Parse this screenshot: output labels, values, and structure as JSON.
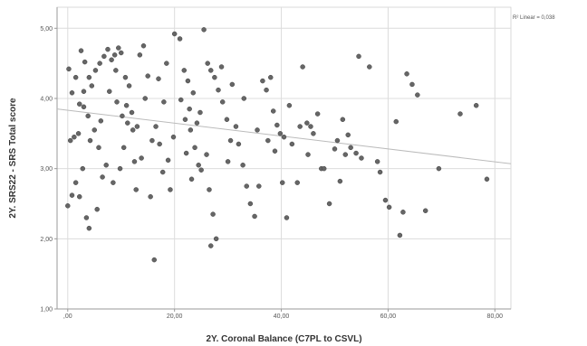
{
  "chart_data": {
    "type": "scatter",
    "xlabel": "2Y. Coronal Balance (C7PL to CSVL)",
    "ylabel": "2Y. SRS22 - SRS Total score",
    "xlim": [
      -2,
      83
    ],
    "ylim": [
      1.0,
      5.3
    ],
    "xticks": [
      0,
      20,
      40,
      60,
      80
    ],
    "xtick_labels": [
      ",00",
      "20,00",
      "40,00",
      "60,00",
      "80,00"
    ],
    "yticks": [
      1.0,
      2.0,
      3.0,
      4.0,
      5.0
    ],
    "ytick_labels": [
      "1,00",
      "2,00",
      "3,00",
      "4,00",
      "5,00"
    ],
    "grid": true,
    "annotation": "R² Linear = 0,038",
    "fit_line": {
      "x": [
        -2,
        83
      ],
      "y": [
        3.85,
        3.07
      ]
    },
    "colors": {
      "point": "#666666",
      "point_edge": "#444444",
      "grid": "#dcdcdc",
      "fit": "#bbbbbb",
      "frame": "#d0d0d0"
    },
    "points": [
      [
        0.2,
        4.42
      ],
      [
        0.8,
        4.08
      ],
      [
        1.5,
        4.3
      ],
      [
        2.2,
        3.92
      ],
      [
        3.0,
        4.1
      ],
      [
        0.5,
        3.4
      ],
      [
        1.2,
        3.45
      ],
      [
        2.0,
        3.5
      ],
      [
        0.8,
        2.62
      ],
      [
        1.5,
        2.8
      ],
      [
        2.2,
        2.6
      ],
      [
        0.0,
        2.47
      ],
      [
        2.5,
        4.68
      ],
      [
        3.2,
        4.52
      ],
      [
        4.0,
        4.3
      ],
      [
        3.0,
        3.88
      ],
      [
        3.8,
        3.75
      ],
      [
        4.5,
        4.18
      ],
      [
        5.2,
        4.4
      ],
      [
        6.0,
        4.5
      ],
      [
        6.8,
        4.6
      ],
      [
        7.5,
        4.7
      ],
      [
        8.2,
        4.55
      ],
      [
        4.2,
        3.4
      ],
      [
        5.0,
        3.55
      ],
      [
        5.8,
        3.3
      ],
      [
        3.5,
        2.3
      ],
      [
        4.0,
        2.15
      ],
      [
        5.5,
        2.42
      ],
      [
        6.5,
        2.88
      ],
      [
        7.2,
        3.05
      ],
      [
        8.5,
        2.8
      ],
      [
        9.0,
        4.4
      ],
      [
        8.8,
        4.62
      ],
      [
        9.5,
        4.72
      ],
      [
        10.0,
        4.65
      ],
      [
        9.2,
        3.95
      ],
      [
        10.2,
        3.75
      ],
      [
        11.0,
        3.9
      ],
      [
        12.0,
        3.8
      ],
      [
        11.2,
        3.65
      ],
      [
        11.5,
        4.18
      ],
      [
        10.5,
        3.3
      ],
      [
        9.8,
        3.0
      ],
      [
        12.5,
        3.1
      ],
      [
        12.8,
        2.7
      ],
      [
        12.2,
        3.55
      ],
      [
        13.5,
        4.62
      ],
      [
        14.2,
        4.75
      ],
      [
        15.0,
        4.32
      ],
      [
        14.5,
        4.0
      ],
      [
        13.0,
        3.6
      ],
      [
        15.8,
        3.4
      ],
      [
        16.5,
        3.6
      ],
      [
        17.2,
        3.35
      ],
      [
        18.0,
        3.95
      ],
      [
        17.0,
        4.28
      ],
      [
        18.5,
        4.5
      ],
      [
        16.2,
        1.7
      ],
      [
        18.8,
        3.12
      ],
      [
        19.2,
        2.7
      ],
      [
        20.0,
        4.92
      ],
      [
        21.0,
        4.85
      ],
      [
        21.8,
        4.4
      ],
      [
        22.5,
        4.25
      ],
      [
        21.2,
        3.98
      ],
      [
        22.0,
        3.7
      ],
      [
        22.8,
        3.85
      ],
      [
        23.5,
        4.08
      ],
      [
        23.0,
        3.55
      ],
      [
        24.2,
        3.65
      ],
      [
        24.8,
        3.8
      ],
      [
        23.8,
        3.3
      ],
      [
        24.5,
        3.05
      ],
      [
        25.0,
        2.98
      ],
      [
        23.2,
        2.85
      ],
      [
        22.2,
        3.22
      ],
      [
        25.5,
        4.98
      ],
      [
        26.2,
        4.5
      ],
      [
        26.8,
        4.4
      ],
      [
        27.5,
        4.3
      ],
      [
        26.0,
        3.2
      ],
      [
        26.5,
        2.7
      ],
      [
        27.2,
        2.35
      ],
      [
        27.8,
        2.0
      ],
      [
        26.8,
        1.9
      ],
      [
        28.2,
        4.12
      ],
      [
        29.0,
        3.95
      ],
      [
        29.8,
        3.7
      ],
      [
        30.5,
        3.4
      ],
      [
        30.0,
        3.1
      ],
      [
        31.5,
        3.6
      ],
      [
        32.0,
        3.35
      ],
      [
        32.8,
        3.05
      ],
      [
        33.5,
        2.75
      ],
      [
        34.2,
        2.5
      ],
      [
        35.0,
        2.32
      ],
      [
        35.8,
        2.75
      ],
      [
        36.5,
        4.25
      ],
      [
        37.2,
        4.12
      ],
      [
        38.0,
        4.3
      ],
      [
        38.5,
        3.82
      ],
      [
        39.2,
        3.62
      ],
      [
        39.8,
        3.5
      ],
      [
        38.8,
        3.25
      ],
      [
        40.5,
        3.45
      ],
      [
        40.2,
        2.8
      ],
      [
        41.0,
        2.3
      ],
      [
        42.0,
        3.35
      ],
      [
        43.0,
        2.8
      ],
      [
        44.0,
        4.45
      ],
      [
        44.8,
        3.65
      ],
      [
        45.5,
        3.6
      ],
      [
        46.0,
        3.5
      ],
      [
        46.8,
        3.78
      ],
      [
        47.5,
        3.0
      ],
      [
        48.0,
        3.0
      ],
      [
        49.0,
        2.5
      ],
      [
        50.0,
        3.28
      ],
      [
        51.0,
        2.82
      ],
      [
        52.0,
        3.2
      ],
      [
        53.0,
        3.3
      ],
      [
        54.0,
        3.22
      ],
      [
        55.0,
        3.15
      ],
      [
        50.5,
        3.4
      ],
      [
        51.5,
        3.7
      ],
      [
        52.5,
        3.48
      ],
      [
        54.5,
        4.6
      ],
      [
        56.5,
        4.45
      ],
      [
        58.0,
        3.1
      ],
      [
        58.5,
        2.95
      ],
      [
        59.5,
        2.55
      ],
      [
        60.2,
        2.45
      ],
      [
        61.5,
        3.67
      ],
      [
        62.2,
        2.05
      ],
      [
        62.8,
        2.38
      ],
      [
        63.5,
        4.35
      ],
      [
        64.5,
        4.2
      ],
      [
        65.5,
        4.05
      ],
      [
        67.0,
        2.4
      ],
      [
        69.5,
        3.0
      ],
      [
        73.5,
        3.78
      ],
      [
        76.5,
        3.9
      ],
      [
        78.5,
        2.85
      ],
      [
        28.8,
        4.45
      ],
      [
        30.8,
        4.2
      ],
      [
        33.0,
        4.0
      ],
      [
        35.5,
        3.55
      ],
      [
        37.5,
        3.4
      ],
      [
        41.5,
        3.9
      ],
      [
        43.5,
        3.6
      ],
      [
        45.0,
        3.2
      ],
      [
        2.8,
        3.0
      ],
      [
        6.2,
        3.68
      ],
      [
        7.8,
        4.1
      ],
      [
        10.8,
        4.3
      ],
      [
        13.8,
        3.15
      ],
      [
        15.5,
        2.6
      ],
      [
        17.8,
        2.95
      ],
      [
        19.8,
        3.45
      ]
    ]
  }
}
